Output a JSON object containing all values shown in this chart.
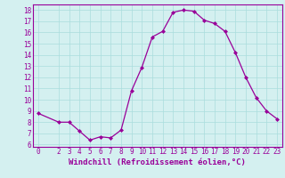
{
  "x": [
    0,
    2,
    3,
    4,
    5,
    6,
    7,
    8,
    9,
    10,
    11,
    12,
    13,
    14,
    15,
    16,
    17,
    18,
    19,
    20,
    21,
    22,
    23
  ],
  "y": [
    8.8,
    8.0,
    8.0,
    7.2,
    6.4,
    6.7,
    6.6,
    7.3,
    10.8,
    12.9,
    15.6,
    16.1,
    17.8,
    18.0,
    17.9,
    17.1,
    16.8,
    16.1,
    14.2,
    12.0,
    10.2,
    9.0,
    8.3
  ],
  "line_color": "#990099",
  "marker": "D",
  "marker_size": 2,
  "bg_color": "#d4f0f0",
  "grid_color": "#aadddd",
  "xlabel": "Windchill (Refroidissement éolien,°C)",
  "ylabel_ticks": [
    6,
    7,
    8,
    9,
    10,
    11,
    12,
    13,
    14,
    15,
    16,
    17,
    18
  ],
  "xlim": [
    -0.5,
    23.5
  ],
  "ylim": [
    5.8,
    18.5
  ],
  "xticks": [
    0,
    2,
    3,
    4,
    5,
    6,
    7,
    8,
    9,
    10,
    11,
    12,
    13,
    14,
    15,
    16,
    17,
    18,
    19,
    20,
    21,
    22,
    23
  ],
  "tick_fontsize": 5.5,
  "xlabel_fontsize": 6.5
}
